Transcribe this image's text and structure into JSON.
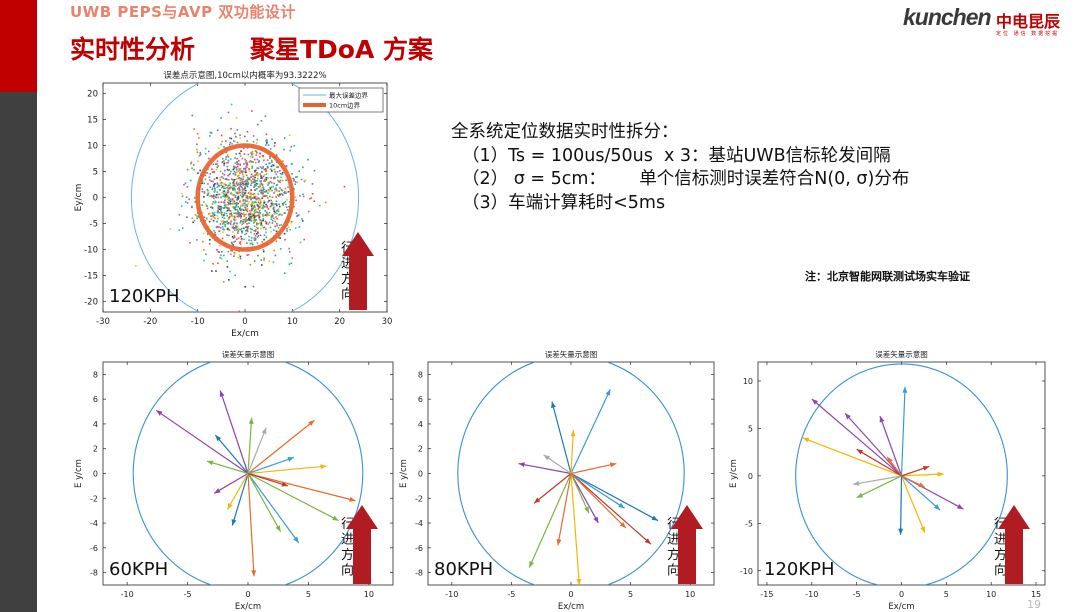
{
  "header": "UWB PEPS与AVP 双功能设计",
  "title": "实时性分析",
  "subtitle": "聚星TDoA 方案",
  "logo": {
    "brand": "kunchen",
    "cn": "中电昆辰",
    "tag": "定位 通信 数据挖掘"
  },
  "bullets": {
    "heading": "全系统定位数据实时性拆分：",
    "items": [
      "（1）Ts = 100us/50us  x 3：基站UWB信标轮发间隔",
      "（2） σ = 5cm：      单个信标测时误差符合N(0, σ)分布",
      "（3）车端计算耗时<5ms"
    ]
  },
  "note": "注：北京智能网联测试场实车验证",
  "page_number": "19",
  "colors": {
    "accent": "#c00000",
    "circle": "#3b8fd6",
    "arrow": "#b01c22",
    "header": "#e8836d"
  },
  "chart_data": [
    {
      "type": "scatter",
      "title": "误差点示意图,10cm以内概率为93.3222%",
      "xlabel": "Ex/cm",
      "ylabel": "Ey/cm",
      "xlim": [
        -30,
        30
      ],
      "ylim": [
        -22,
        22
      ],
      "xticks": [
        "-30",
        "-20",
        "-10",
        "0",
        "10",
        "20",
        "30"
      ],
      "yticks": [
        "20",
        "15",
        "10",
        "5",
        "0",
        "-5",
        "-10",
        "-15",
        "-20"
      ],
      "legend": {
        "position": "top-right",
        "entries": [
          "最大误差边界",
          "10cm边界"
        ]
      },
      "max_error_radius": 24,
      "boundary_radius": 10,
      "speed_label": "120KPH",
      "direction_label": "行进方向"
    },
    {
      "type": "vector",
      "title": "误差矢量示意图",
      "xlabel": "Ex/cm",
      "ylabel": "E y/cm",
      "xlim": [
        -12,
        12
      ],
      "ylim": [
        -9,
        9
      ],
      "xticks": [
        "-10",
        "-5",
        "0",
        "5",
        "10"
      ],
      "yticks": [
        "8",
        "6",
        "4",
        "2",
        "0",
        "-2",
        "-4",
        "-6",
        "-8"
      ],
      "circle_radius": 9.5,
      "speed_label": "60KPH",
      "direction_label": "行进方向",
      "vectors": [
        {
          "x": -7.6,
          "y": 5.1,
          "color": "#8e44ad"
        },
        {
          "x": -2.3,
          "y": 6.7,
          "color": "#8e44ad"
        },
        {
          "x": 0.3,
          "y": 4.5,
          "color": "#7cb342"
        },
        {
          "x": 5.5,
          "y": 4.3,
          "color": "#e86b2c"
        },
        {
          "x": 3.8,
          "y": 1.3,
          "color": "#3b9bd8"
        },
        {
          "x": 6.5,
          "y": 0.6,
          "color": "#f2b705"
        },
        {
          "x": 8.9,
          "y": -2.2,
          "color": "#e86b2c"
        },
        {
          "x": 7.5,
          "y": -3.8,
          "color": "#7cb342"
        },
        {
          "x": 4.2,
          "y": -5.6,
          "color": "#3b9bd8"
        },
        {
          "x": 2.7,
          "y": -4.7,
          "color": "#7cb342"
        },
        {
          "x": 0.5,
          "y": -8.3,
          "color": "#e86b2c"
        },
        {
          "x": -1.3,
          "y": -4.2,
          "color": "#1f77b4"
        },
        {
          "x": -2.8,
          "y": -1.6,
          "color": "#8e44ad"
        },
        {
          "x": -3.4,
          "y": 1.0,
          "color": "#7cb342"
        },
        {
          "x": -2.7,
          "y": 3.1,
          "color": "#1f77b4"
        },
        {
          "x": 1.5,
          "y": 3.7,
          "color": "#aaaaaa"
        },
        {
          "x": 3.3,
          "y": -1.0,
          "color": "#c0392b"
        },
        {
          "x": -1.7,
          "y": -2.9,
          "color": "#f2b705"
        }
      ]
    },
    {
      "type": "vector",
      "title": "误差矢量示意图",
      "xlabel": "Ex/cm",
      "ylabel": "E y/cm",
      "xlim": [
        -12,
        12
      ],
      "ylim": [
        -9,
        9
      ],
      "xticks": [
        "-10",
        "-5",
        "0",
        "5",
        "10"
      ],
      "yticks": [
        "8",
        "6",
        "4",
        "2",
        "0",
        "-2",
        "-4",
        "-6",
        "-8"
      ],
      "circle_radius": 9.5,
      "speed_label": "80KPH",
      "direction_label": "行进方向",
      "vectors": [
        {
          "x": -1.6,
          "y": 5.8,
          "color": "#1f77b4"
        },
        {
          "x": 3.3,
          "y": 6.8,
          "color": "#3b9bd8"
        },
        {
          "x": 0.2,
          "y": 3.5,
          "color": "#f2b705"
        },
        {
          "x": -4.4,
          "y": 0.8,
          "color": "#8e44ad"
        },
        {
          "x": 7.3,
          "y": -3.8,
          "color": "#1f77b4"
        },
        {
          "x": 4.5,
          "y": -2.8,
          "color": "#3b9bd8"
        },
        {
          "x": 6.7,
          "y": -5.7,
          "color": "#c0392b"
        },
        {
          "x": 0.7,
          "y": -9.0,
          "color": "#f2b705"
        },
        {
          "x": -3.5,
          "y": -7.6,
          "color": "#7cb342"
        },
        {
          "x": -1.1,
          "y": -5.8,
          "color": "#e86b2c"
        },
        {
          "x": -3.1,
          "y": -2.4,
          "color": "#c0392b"
        },
        {
          "x": 2.3,
          "y": -4.0,
          "color": "#8e44ad"
        },
        {
          "x": 3.8,
          "y": 0.8,
          "color": "#e86b2c"
        },
        {
          "x": -2.3,
          "y": 1.5,
          "color": "#aaaaaa"
        },
        {
          "x": 4.6,
          "y": -4.4,
          "color": "#e86b2c"
        },
        {
          "x": 1.5,
          "y": -3.2,
          "color": "#7cb342"
        }
      ]
    },
    {
      "type": "vector",
      "title": "误差矢量示意图",
      "xlabel": "Ex/cm",
      "ylabel": "E y/cm",
      "xlim": [
        -16,
        16
      ],
      "ylim": [
        -11.5,
        12
      ],
      "xticks": [
        "-15",
        "-10",
        "-5",
        "0",
        "5",
        "10",
        "15"
      ],
      "yticks": [
        "10",
        "5",
        "0",
        "-5",
        "-10"
      ],
      "circle_radius": 11.8,
      "speed_label": "120KPH",
      "direction_label": "行进方向",
      "vectors": [
        {
          "x": -10.0,
          "y": 8.1,
          "color": "#8e44ad"
        },
        {
          "x": -6.3,
          "y": 6.6,
          "color": "#8e44ad"
        },
        {
          "x": -11.0,
          "y": 4.0,
          "color": "#f2b705"
        },
        {
          "x": 0.4,
          "y": 9.4,
          "color": "#3b9bd8"
        },
        {
          "x": -2.4,
          "y": 6.3,
          "color": "#8e44ad"
        },
        {
          "x": -5.0,
          "y": 2.8,
          "color": "#c0392b"
        },
        {
          "x": 4.7,
          "y": 0.2,
          "color": "#f2b705"
        },
        {
          "x": 6.9,
          "y": -3.5,
          "color": "#8e44ad"
        },
        {
          "x": 4.3,
          "y": -3.6,
          "color": "#3b9bd8"
        },
        {
          "x": 2.6,
          "y": -6.0,
          "color": "#f2b705"
        },
        {
          "x": -0.1,
          "y": -6.2,
          "color": "#1f77b4"
        },
        {
          "x": -5.0,
          "y": -2.3,
          "color": "#7cb342"
        },
        {
          "x": -5.4,
          "y": -0.9,
          "color": "#aaaaaa"
        },
        {
          "x": 2.6,
          "y": -1.2,
          "color": "#e86b2c"
        },
        {
          "x": -1.6,
          "y": 2.0,
          "color": "#e86b2c"
        },
        {
          "x": 3.1,
          "y": 1.0,
          "color": "#c0392b"
        }
      ]
    }
  ]
}
